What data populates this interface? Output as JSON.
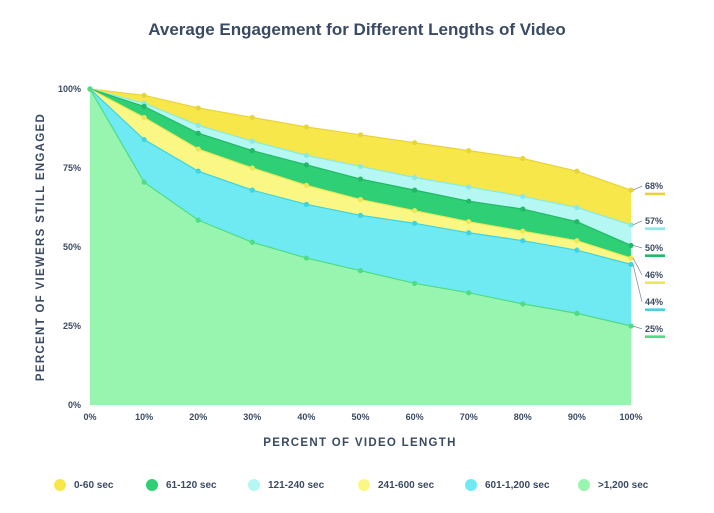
{
  "chart_data": {
    "type": "area",
    "title": "Average Engagement for Different Lengths of Video",
    "xlabel": "PERCENT OF VIDEO LENGTH",
    "ylabel": "PERCENT OF VIEWERS STILL ENGAGED",
    "x": [
      0,
      10,
      20,
      30,
      40,
      50,
      60,
      70,
      80,
      90,
      100
    ],
    "x_tick_labels": [
      "0%",
      "10%",
      "20%",
      "30%",
      "40%",
      "50%",
      "60%",
      "70%",
      "80%",
      "90%",
      "100%"
    ],
    "y_tick_values": [
      0,
      25,
      50,
      75,
      100
    ],
    "y_tick_labels": [
      "0%",
      "25%",
      "50%",
      "75%",
      "100%"
    ],
    "xlim": [
      0,
      100
    ],
    "ylim": [
      0,
      100
    ],
    "grid": false,
    "legend_position": "bottom",
    "series": [
      {
        "name": "0-60 sec",
        "color": "#f7e74a",
        "line": "#e8d43a",
        "values": [
          100,
          98,
          94,
          91,
          88,
          85.5,
          83,
          80.5,
          78,
          74,
          68
        ],
        "end_label": "68%"
      },
      {
        "name": "61-120 sec",
        "color": "#2fcf75",
        "line": "#22b865",
        "values": [
          100,
          94.5,
          86,
          80.5,
          76,
          71.5,
          68,
          64.5,
          62,
          58,
          50.5
        ],
        "end_label": "50%"
      },
      {
        "name": "121-240 sec",
        "color": "#b5f7f2",
        "line": "#8aeae3",
        "values": [
          100,
          95.5,
          88.5,
          83.5,
          79,
          75.5,
          72,
          69,
          66,
          62.5,
          57
        ],
        "end_label": "57%"
      },
      {
        "name": "241-600 sec",
        "color": "#fbf784",
        "line": "#ece65a",
        "values": [
          100,
          91,
          81,
          75,
          69.5,
          65,
          61.5,
          58,
          55,
          52,
          46.5
        ],
        "end_label": "46%"
      },
      {
        "name": "601-1,200 sec",
        "color": "#6fe9f2",
        "line": "#3fd4e2",
        "values": [
          100,
          84,
          74,
          68,
          63.5,
          60,
          57.5,
          54.5,
          52,
          49,
          44.5
        ],
        "end_label": "44%"
      },
      {
        "name": ">1,200 sec",
        "color": "#98f5b0",
        "line": "#4fdc85",
        "values": [
          100,
          70.5,
          58.5,
          51.5,
          46.5,
          42.5,
          38.5,
          35.5,
          32,
          29,
          25
        ],
        "end_label": "25%"
      }
    ]
  }
}
